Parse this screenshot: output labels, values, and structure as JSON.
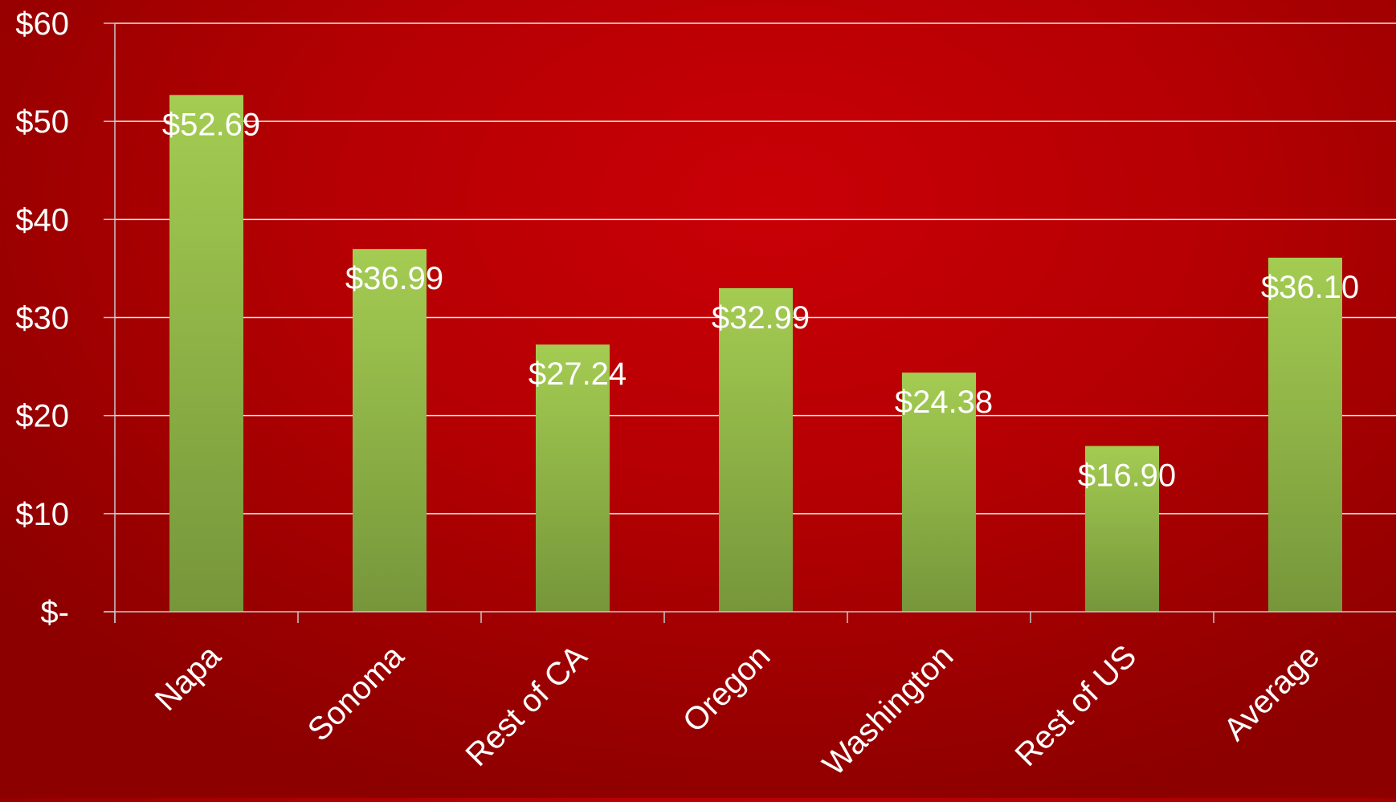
{
  "chart_data": {
    "type": "bar",
    "title": "",
    "xlabel": "",
    "ylabel": "",
    "categories": [
      "Napa",
      "Sonoma",
      "Rest of CA",
      "Oregon",
      "Washington",
      "Rest of US",
      "Average"
    ],
    "values": [
      52.69,
      36.99,
      27.24,
      32.99,
      24.38,
      16.9,
      36.1
    ],
    "data_labels": [
      "$52.69",
      "$36.99",
      "$27.24",
      "$32.99",
      "$24.38",
      "$16.90",
      "$36.10"
    ],
    "ylim": [
      0,
      60
    ],
    "yticks": [
      0,
      10,
      20,
      30,
      40,
      50,
      60
    ],
    "ytick_labels": [
      "$-",
      "$10",
      "$20",
      "$30",
      "$40",
      "$50",
      "$60"
    ],
    "grid": true,
    "legend": "none",
    "colors": {
      "background": "#b30004",
      "bar_top": "#a4cc52",
      "bar_bottom": "#76963a",
      "gridline": "#ffffff",
      "axis": "#c8c8c8",
      "text": "#ffffff"
    }
  }
}
